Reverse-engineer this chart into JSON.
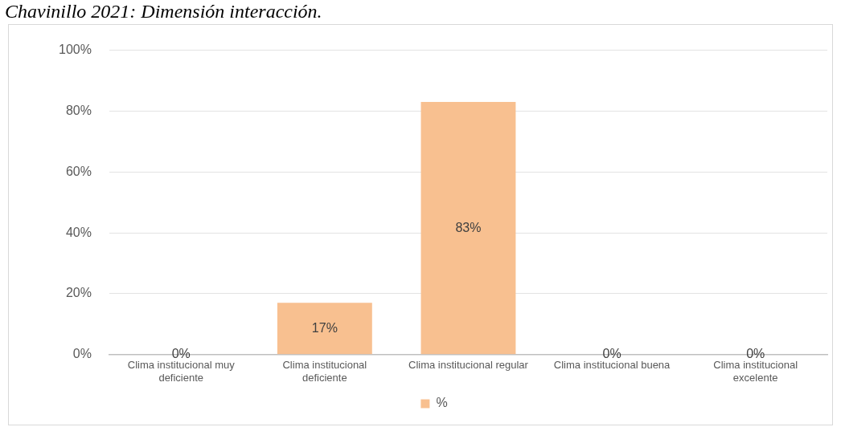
{
  "chart_data": {
    "type": "bar",
    "title": "Chavinillo 2021: Dimensión interacción.",
    "categories": [
      "Clima institucional muy deficiente",
      "Clima institucional deficiente",
      "Clima institucional regular",
      "Clima institucional buena",
      "Clima institucional excelente"
    ],
    "series": [
      {
        "name": "%",
        "color": "#f8c090",
        "values": [
          0,
          17,
          83,
          0,
          0
        ],
        "value_labels": [
          "0%",
          "17%",
          "83%",
          "0%",
          "0%"
        ]
      }
    ],
    "ylim": [
      0,
      100
    ],
    "yticks": [
      {
        "value": 0,
        "label": "0%"
      },
      {
        "value": 20,
        "label": "20%"
      },
      {
        "value": 40,
        "label": "40%"
      },
      {
        "value": 60,
        "label": "60%"
      },
      {
        "value": 80,
        "label": "80%"
      },
      {
        "value": 100,
        "label": "100%"
      }
    ],
    "grid": "y",
    "legend": "bottom"
  }
}
